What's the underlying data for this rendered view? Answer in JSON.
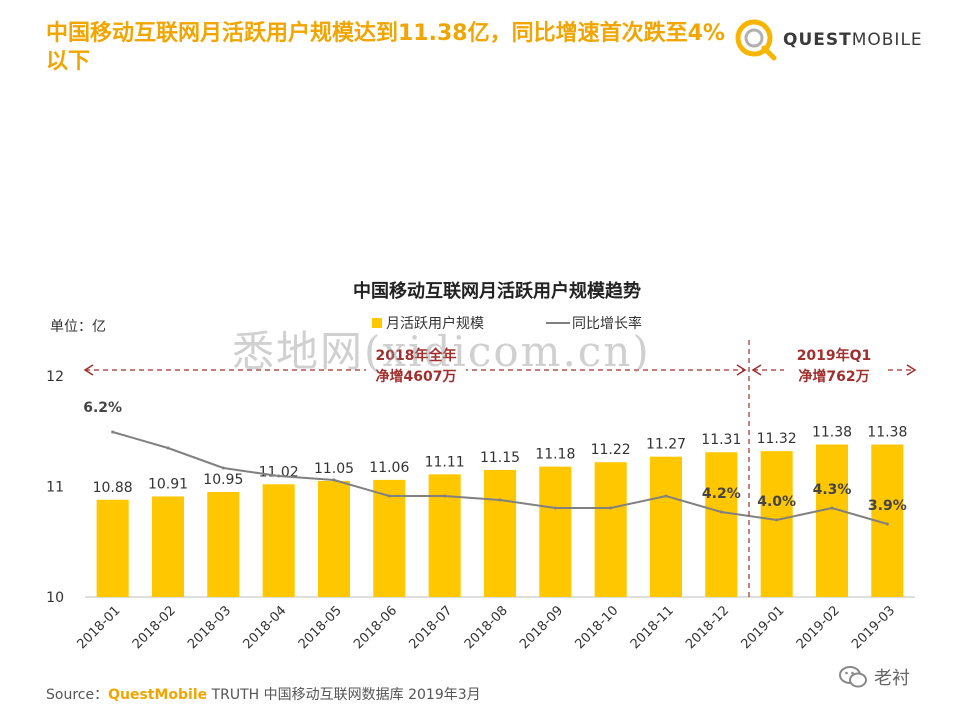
{
  "headline": "中国移动互联网月活跃用户规模达到11.38亿，同比增速首次跌至4%以下",
  "brand": {
    "quest": "QUEST",
    "mobile": "MOBILE",
    "accent_color": "#f7b500"
  },
  "chart_data": {
    "type": "bar",
    "title": "中国移动互联网月活跃用户规模趋势",
    "unit_label": "单位：亿",
    "legend": {
      "bar": "月活跃用户规模",
      "line": "同比增长率",
      "placement": "top"
    },
    "categories": [
      "2018-01",
      "2018-02",
      "2018-03",
      "2018-04",
      "2018-05",
      "2018-06",
      "2018-07",
      "2018-08",
      "2018-09",
      "2018-10",
      "2018-11",
      "2018-12",
      "2019-01",
      "2019-02",
      "2019-03"
    ],
    "series": [
      {
        "name": "月活跃用户规模",
        "type": "bar",
        "color": "#ffc700",
        "values": [
          10.88,
          10.91,
          10.95,
          11.02,
          11.05,
          11.06,
          11.11,
          11.15,
          11.18,
          11.22,
          11.27,
          11.31,
          11.32,
          11.38,
          11.38
        ],
        "labels": [
          "10.88",
          "10.91",
          "10.95",
          "11.02",
          "11.05",
          "11.06",
          "11.11",
          "11.15",
          "11.18",
          "11.22",
          "11.27",
          "11.31",
          "11.32",
          "11.38",
          "11.38"
        ]
      },
      {
        "name": "同比增长率",
        "type": "line",
        "color": "#808080",
        "unit": "%",
        "values": [
          6.2,
          5.8,
          5.3,
          5.1,
          5.0,
          4.6,
          4.6,
          4.5,
          4.3,
          4.3,
          4.6,
          4.2,
          4.0,
          4.3,
          3.9
        ],
        "point_labels": [
          {
            "index": 0,
            "text": "6.2%"
          },
          {
            "index": 11,
            "text": "4.2%"
          },
          {
            "index": 12,
            "text": "4.0%"
          },
          {
            "index": 13,
            "text": "4.3%"
          },
          {
            "index": 14,
            "text": "3.9%"
          }
        ]
      }
    ],
    "y_axis": {
      "ticks": [
        "10",
        "11",
        "12"
      ],
      "range": [
        10,
        12
      ]
    },
    "annotations": [
      {
        "line1": "2018年全年",
        "line2": "净增4607万",
        "spans": [
          "2018-01",
          "2018-12"
        ]
      },
      {
        "line1": "2019年Q1",
        "line2": "净增762万",
        "spans": [
          "2019-01",
          "2019-03"
        ]
      }
    ],
    "divider_after": "2018-12"
  },
  "source": {
    "label": "Source：",
    "brand": "QuestMobile",
    "text": " TRUTH 中国移动互联网数据库 2019年3月"
  },
  "wechat": {
    "icon": "wechat-icon",
    "name": "老衬"
  },
  "watermark": "悉地网(xidicom.cn)"
}
